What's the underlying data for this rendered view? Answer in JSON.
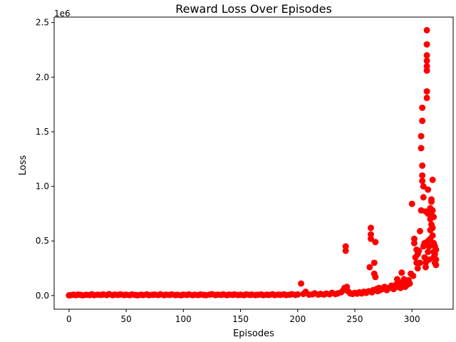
{
  "chart_data": {
    "type": "scatter",
    "title": "Reward Loss Over Episodes",
    "xlabel": "Episodes",
    "ylabel": "Loss",
    "y_scale_label": "1e6",
    "y_scale": 1000000,
    "xlim": [
      -13,
      336
    ],
    "ylim": [
      -125000,
      2550000
    ],
    "x_ticks": [
      0,
      50,
      100,
      150,
      200,
      250,
      300
    ],
    "x_tick_labels": [
      "0",
      "50",
      "100",
      "150",
      "200",
      "250",
      "300"
    ],
    "y_ticks": [
      0,
      500000,
      1000000,
      1500000,
      2000000,
      2500000
    ],
    "y_tick_labels": [
      "0.0",
      "0.5",
      "1.0",
      "1.5",
      "2.0",
      "2.5"
    ],
    "grid": false,
    "marker_color": "#ff0000",
    "series": [
      {
        "points": [
          [
            0,
            2000
          ],
          [
            2,
            5000
          ],
          [
            4,
            8000
          ],
          [
            6,
            4000
          ],
          [
            8,
            9000
          ],
          [
            10,
            6000
          ],
          [
            12,
            3000
          ],
          [
            15,
            7000
          ],
          [
            18,
            5000
          ],
          [
            20,
            12000
          ],
          [
            22,
            4000
          ],
          [
            25,
            8000
          ],
          [
            28,
            6000
          ],
          [
            30,
            10000
          ],
          [
            33,
            5000
          ],
          [
            35,
            14000
          ],
          [
            38,
            4000
          ],
          [
            40,
            9000
          ],
          [
            43,
            6000
          ],
          [
            45,
            11000
          ],
          [
            48,
            5000
          ],
          [
            50,
            8000
          ],
          [
            53,
            4000
          ],
          [
            55,
            10000
          ],
          [
            58,
            6000
          ],
          [
            60,
            3000
          ],
          [
            63,
            8000
          ],
          [
            65,
            5000
          ],
          [
            68,
            11000
          ],
          [
            70,
            4000
          ],
          [
            73,
            7000
          ],
          [
            75,
            9000
          ],
          [
            78,
            5000
          ],
          [
            80,
            12000
          ],
          [
            83,
            4000
          ],
          [
            85,
            8000
          ],
          [
            88,
            6000
          ],
          [
            90,
            10000
          ],
          [
            93,
            5000
          ],
          [
            95,
            7000
          ],
          [
            98,
            3000
          ],
          [
            100,
            9000
          ],
          [
            103,
            6000
          ],
          [
            105,
            11000
          ],
          [
            108,
            4000
          ],
          [
            110,
            8000
          ],
          [
            113,
            5000
          ],
          [
            115,
            10000
          ],
          [
            118,
            6000
          ],
          [
            120,
            4000
          ],
          [
            123,
            9000
          ],
          [
            125,
            13000
          ],
          [
            128,
            5000
          ],
          [
            130,
            8000
          ],
          [
            133,
            6000
          ],
          [
            135,
            11000
          ],
          [
            138,
            4000
          ],
          [
            140,
            9000
          ],
          [
            143,
            7000
          ],
          [
            145,
            10000
          ],
          [
            148,
            5000
          ],
          [
            150,
            8000
          ],
          [
            153,
            4000
          ],
          [
            155,
            11000
          ],
          [
            158,
            6000
          ],
          [
            160,
            9000
          ],
          [
            163,
            5000
          ],
          [
            165,
            7000
          ],
          [
            168,
            10000
          ],
          [
            170,
            4000
          ],
          [
            173,
            8000
          ],
          [
            175,
            6000
          ],
          [
            178,
            12000
          ],
          [
            180,
            5000
          ],
          [
            183,
            9000
          ],
          [
            185,
            7000
          ],
          [
            188,
            11000
          ],
          [
            190,
            5000
          ],
          [
            193,
            8000
          ],
          [
            195,
            13000
          ],
          [
            198,
            6000
          ],
          [
            200,
            10000
          ],
          [
            203,
            110000
          ],
          [
            205,
            15000
          ],
          [
            207,
            35000
          ],
          [
            210,
            8000
          ],
          [
            213,
            12000
          ],
          [
            215,
            20000
          ],
          [
            218,
            9000
          ],
          [
            220,
            15000
          ],
          [
            223,
            10000
          ],
          [
            225,
            18000
          ],
          [
            228,
            12000
          ],
          [
            230,
            25000
          ],
          [
            233,
            14000
          ],
          [
            235,
            20000
          ],
          [
            238,
            30000
          ],
          [
            240,
            50000
          ],
          [
            241,
            70000
          ],
          [
            242,
            410000
          ],
          [
            242,
            450000
          ],
          [
            243,
            80000
          ],
          [
            244,
            40000
          ],
          [
            246,
            20000
          ],
          [
            248,
            15000
          ],
          [
            250,
            25000
          ],
          [
            252,
            18000
          ],
          [
            254,
            30000
          ],
          [
            256,
            20000
          ],
          [
            258,
            35000
          ],
          [
            260,
            25000
          ],
          [
            262,
            40000
          ],
          [
            263,
            260000
          ],
          [
            264,
            520000
          ],
          [
            264,
            560000
          ],
          [
            264,
            620000
          ],
          [
            265,
            30000
          ],
          [
            266,
            50000
          ],
          [
            267,
            200000
          ],
          [
            267,
            300000
          ],
          [
            268,
            170000
          ],
          [
            268,
            490000
          ],
          [
            269,
            60000
          ],
          [
            270,
            40000
          ],
          [
            271,
            70000
          ],
          [
            272,
            50000
          ],
          [
            274,
            60000
          ],
          [
            276,
            80000
          ],
          [
            278,
            50000
          ],
          [
            280,
            70000
          ],
          [
            282,
            90000
          ],
          [
            284,
            60000
          ],
          [
            286,
            100000
          ],
          [
            287,
            150000
          ],
          [
            288,
            80000
          ],
          [
            289,
            120000
          ],
          [
            290,
            70000
          ],
          [
            291,
            210000
          ],
          [
            292,
            100000
          ],
          [
            293,
            150000
          ],
          [
            294,
            80000
          ],
          [
            295,
            120000
          ],
          [
            296,
            100000
          ],
          [
            297,
            140000
          ],
          [
            298,
            110000
          ],
          [
            299,
            200000
          ],
          [
            300,
            840000
          ],
          [
            301,
            180000
          ],
          [
            302,
            520000
          ],
          [
            302,
            480000
          ],
          [
            303,
            350000
          ],
          [
            304,
            300000
          ],
          [
            304,
            420000
          ],
          [
            305,
            250000
          ],
          [
            305,
            380000
          ],
          [
            306,
            410000
          ],
          [
            307,
            300000
          ],
          [
            307,
            590000
          ],
          [
            308,
            780000
          ],
          [
            308,
            1350000
          ],
          [
            308,
            1460000
          ],
          [
            309,
            1600000
          ],
          [
            309,
            1720000
          ],
          [
            309,
            1190000
          ],
          [
            309,
            1050000
          ],
          [
            309,
            1100000
          ],
          [
            310,
            1000000
          ],
          [
            310,
            900000
          ],
          [
            310,
            450000
          ],
          [
            311,
            350000
          ],
          [
            311,
            480000
          ],
          [
            312,
            770000
          ],
          [
            312,
            260000
          ],
          [
            312,
            300000
          ],
          [
            313,
            2430000
          ],
          [
            313,
            2300000
          ],
          [
            313,
            2200000
          ],
          [
            313,
            2150000
          ],
          [
            313,
            2100000
          ],
          [
            313,
            2060000
          ],
          [
            313,
            1870000
          ],
          [
            313,
            1810000
          ],
          [
            314,
            970000
          ],
          [
            314,
            750000
          ],
          [
            314,
            500000
          ],
          [
            314,
            400000
          ],
          [
            315,
            330000
          ],
          [
            315,
            450000
          ],
          [
            316,
            520000
          ],
          [
            316,
            600000
          ],
          [
            316,
            700000
          ],
          [
            316,
            800000
          ],
          [
            317,
            760000
          ],
          [
            317,
            860000
          ],
          [
            317,
            880000
          ],
          [
            317,
            650000
          ],
          [
            318,
            1060000
          ],
          [
            318,
            780000
          ],
          [
            318,
            620000
          ],
          [
            318,
            550000
          ],
          [
            319,
            720000
          ],
          [
            319,
            480000
          ],
          [
            319,
            400000
          ],
          [
            319,
            350000
          ],
          [
            320,
            300000
          ],
          [
            320,
            380000
          ],
          [
            320,
            450000
          ],
          [
            321,
            330000
          ],
          [
            321,
            420000
          ],
          [
            321,
            280000
          ]
        ]
      }
    ]
  }
}
